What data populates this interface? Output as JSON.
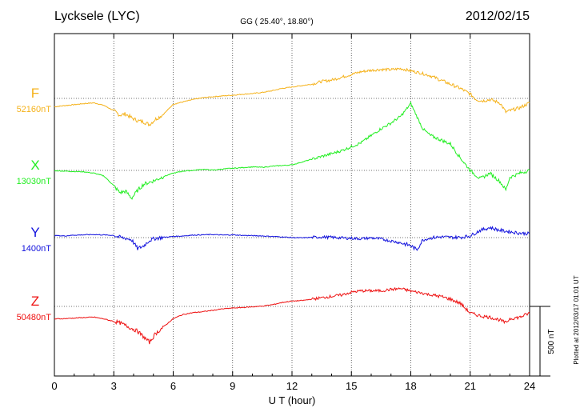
{
  "header": {
    "station": "Lycksele (LYC)",
    "coords": "GG ( 25.40°,  18.80°)",
    "date": "2012/02/15"
  },
  "footer": {
    "plotted": "Plotted at 2012/03/17 01:01  UT",
    "scale_label": "500 nT"
  },
  "chart_data": {
    "type": "line",
    "title": "Lycksele (LYC)",
    "xlabel": "U T (hour)",
    "ylabel": "",
    "xlim": [
      0,
      24
    ],
    "xticks": [
      0,
      3,
      6,
      9,
      12,
      15,
      18,
      21,
      24
    ],
    "x_tick_labels": [
      "0",
      "3",
      "6",
      "9",
      "12",
      "15",
      "18",
      "21",
      "24"
    ],
    "units": "nT",
    "scale_bar_nT": 500,
    "grid": true,
    "series": [
      {
        "name": "F",
        "baseline_label": "52160nT",
        "baseline_nT": 52160,
        "color": "#f5b21b",
        "x": [
          0,
          0.5,
          1,
          1.5,
          2,
          2.5,
          3,
          3.3,
          3.6,
          3.9,
          4.2,
          4.5,
          4.8,
          5.1,
          5.5,
          6,
          6.5,
          7,
          7.5,
          8,
          8.5,
          9,
          9.5,
          10,
          10.5,
          11,
          11.5,
          12,
          12.5,
          13,
          13.5,
          14,
          14.5,
          15,
          15.5,
          16,
          16.5,
          17,
          17.5,
          18,
          18.5,
          19,
          19.5,
          20,
          20.5,
          21,
          21.3,
          21.6,
          22,
          22.5,
          22.8,
          23,
          23.5,
          24
        ],
        "y": [
          52100,
          52108,
          52115,
          52123,
          52128,
          52110,
          52072,
          52040,
          52048,
          52020,
          52000,
          51992,
          51972,
          52010,
          52045,
          52118,
          52135,
          52152,
          52165,
          52172,
          52178,
          52183,
          52190,
          52195,
          52203,
          52215,
          52232,
          52242,
          52252,
          52262,
          52282,
          52292,
          52312,
          52332,
          52352,
          52362,
          52368,
          52366,
          52374,
          52358,
          52342,
          52322,
          52292,
          52262,
          52232,
          52192,
          52152,
          52142,
          52152,
          52128,
          52062,
          52072,
          52092,
          52128
        ]
      },
      {
        "name": "X",
        "baseline_label": "13030nT",
        "baseline_nT": 13030,
        "color": "#22ee22",
        "x": [
          0,
          0.5,
          1,
          1.5,
          2,
          2.5,
          3,
          3.3,
          3.6,
          3.9,
          4.2,
          4.5,
          4.8,
          5.1,
          5.5,
          6,
          6.5,
          7,
          7.5,
          8,
          8.5,
          9,
          9.5,
          10,
          10.5,
          11,
          11.5,
          12,
          12.5,
          13,
          13.5,
          14,
          14.5,
          15,
          15.5,
          16,
          16.5,
          17,
          17.5,
          18,
          18.3,
          18.6,
          19,
          19.5,
          20,
          20.5,
          21,
          21.5,
          22,
          22.5,
          22.8,
          23,
          23.5,
          24
        ],
        "y": [
          13028,
          13025,
          13022,
          13020,
          13010,
          12990,
          12920,
          12870,
          12880,
          12830,
          12885,
          12930,
          12945,
          12960,
          12985,
          13010,
          13025,
          13030,
          13038,
          13032,
          13040,
          13045,
          13050,
          13055,
          13052,
          13060,
          13065,
          13070,
          13090,
          13110,
          13130,
          13150,
          13172,
          13200,
          13230,
          13280,
          13330,
          13370,
          13420,
          13510,
          13420,
          13330,
          13280,
          13250,
          13220,
          13120,
          13030,
          12970,
          13010,
          12950,
          12890,
          12980,
          13010,
          13030
        ]
      },
      {
        "name": "Y",
        "baseline_label": "1400nT",
        "baseline_nT": 1400,
        "color": "#1111dd",
        "x": [
          0,
          0.5,
          1,
          1.5,
          2,
          2.5,
          3,
          3.3,
          3.6,
          3.9,
          4.2,
          4.5,
          4.8,
          5.1,
          5.5,
          6,
          6.5,
          7,
          7.5,
          8,
          8.5,
          9,
          9.5,
          10,
          10.5,
          11,
          11.5,
          12,
          12.5,
          13,
          13.5,
          14,
          14.5,
          15,
          15.5,
          16,
          16.5,
          17,
          17.5,
          18,
          18.3,
          18.6,
          19,
          19.5,
          20,
          20.5,
          21,
          21.5,
          22,
          22.5,
          23,
          23.5,
          24
        ],
        "y": [
          1415,
          1412,
          1418,
          1420,
          1422,
          1419,
          1416,
          1402,
          1395,
          1385,
          1320,
          1340,
          1380,
          1395,
          1402,
          1408,
          1412,
          1418,
          1420,
          1422,
          1418,
          1420,
          1416,
          1414,
          1412,
          1408,
          1405,
          1400,
          1398,
          1402,
          1404,
          1402,
          1398,
          1395,
          1392,
          1398,
          1390,
          1376,
          1362,
          1342,
          1312,
          1382,
          1398,
          1405,
          1402,
          1402,
          1412,
          1452,
          1472,
          1452,
          1442,
          1432,
          1428
        ]
      },
      {
        "name": "Z",
        "baseline_label": "50480nT",
        "baseline_nT": 50480,
        "color": "#ee1111",
        "x": [
          0,
          0.5,
          1,
          1.5,
          2,
          2.5,
          3,
          3.3,
          3.6,
          3.9,
          4.2,
          4.5,
          4.8,
          5.1,
          5.5,
          6,
          6.5,
          7,
          7.5,
          8,
          8.5,
          9,
          9.5,
          10,
          10.5,
          11,
          11.5,
          12,
          12.5,
          13,
          13.5,
          14,
          14.5,
          15,
          15.5,
          16,
          16.5,
          17,
          17.5,
          18,
          18.5,
          19,
          19.5,
          20,
          20.5,
          21,
          21.5,
          22,
          22.5,
          22.8,
          23,
          23.5,
          24
        ],
        "y": [
          50390,
          50392,
          50396,
          50400,
          50403,
          50390,
          50372,
          50362,
          50342,
          50322,
          50302,
          50262,
          50222,
          50282,
          50332,
          50392,
          50422,
          50435,
          50442,
          50452,
          50462,
          50468,
          50472,
          50477,
          50482,
          50492,
          50508,
          50518,
          50522,
          50532,
          50542,
          50552,
          50562,
          50582,
          50592,
          50592,
          50592,
          50602,
          50608,
          50590,
          50578,
          50562,
          50552,
          50532,
          50502,
          50432,
          50412,
          50402,
          50382,
          50362,
          50392,
          50402,
          50432
        ]
      }
    ]
  }
}
